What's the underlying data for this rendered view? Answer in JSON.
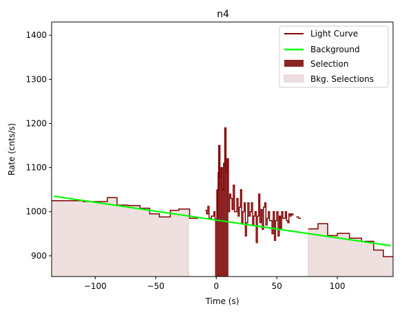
{
  "chart_data": {
    "type": "line",
    "title": "n4",
    "xlabel": "Time (s)",
    "ylabel": "Rate (cnts/s)",
    "xlim": [
      -136,
      146
    ],
    "ylim": [
      853,
      1430
    ],
    "x_ticks": [
      -100,
      -50,
      0,
      50,
      100
    ],
    "x_tick_labels": [
      "−100",
      "−50",
      "0",
      "50",
      "100"
    ],
    "y_ticks": [
      900,
      1000,
      1100,
      1200,
      1300,
      1400
    ],
    "y_tick_labels": [
      "900",
      "1000",
      "1100",
      "1200",
      "1300",
      "1400"
    ],
    "legend_position": "top-right",
    "grid": false,
    "colors": {
      "light_curve": "#800000",
      "background": "#00ff00",
      "selection": "#8b2323",
      "bkg_selection": "#efe0e0"
    },
    "legend": [
      "Light Curve",
      "Background",
      "Selection",
      "Bkg. Selections"
    ],
    "light_curve_segments": [
      [
        [
          -136,
          1025
        ],
        [
          -110,
          1025
        ],
        [
          -110,
          1023
        ],
        [
          -90,
          1023
        ],
        [
          -90,
          1032
        ],
        [
          -82,
          1032
        ],
        [
          -82,
          1015
        ],
        [
          -73,
          1015
        ],
        [
          -73,
          1014
        ],
        [
          -63,
          1014
        ],
        [
          -63,
          1008
        ],
        [
          -55,
          1008
        ],
        [
          -55,
          995
        ],
        [
          -47,
          995
        ],
        [
          -47,
          988
        ],
        [
          -38,
          988
        ],
        [
          -38,
          1003
        ],
        [
          -31,
          1003
        ],
        [
          -31,
          1006
        ],
        [
          -22,
          1006
        ],
        [
          -22,
          985
        ],
        [
          -15,
          985
        ]
      ],
      [
        [
          -9,
          1003
        ],
        [
          -8,
          1003
        ],
        [
          -8,
          995
        ],
        [
          -7,
          995
        ],
        [
          -7,
          1012
        ],
        [
          -6,
          1012
        ],
        [
          -6,
          985
        ],
        [
          -4,
          985
        ],
        [
          -4,
          990
        ],
        [
          -2,
          990
        ],
        [
          -2,
          1000
        ],
        [
          -1,
          1000
        ],
        [
          -1,
          983
        ],
        [
          1,
          983
        ],
        [
          1,
          1050
        ],
        [
          2,
          1050
        ],
        [
          2,
          1150
        ],
        [
          3,
          1150
        ],
        [
          3,
          1080
        ],
        [
          4,
          1080
        ],
        [
          4,
          1100
        ],
        [
          5,
          1100
        ],
        [
          5,
          1050
        ],
        [
          6,
          1050
        ],
        [
          6,
          1110
        ],
        [
          7,
          1110
        ],
        [
          7,
          1190
        ],
        [
          8,
          1190
        ],
        [
          8,
          1090
        ],
        [
          9,
          1090
        ],
        [
          9,
          1120
        ],
        [
          10,
          1120
        ],
        [
          10,
          1000
        ],
        [
          11,
          1000
        ],
        [
          11,
          1040
        ],
        [
          12,
          1040
        ],
        [
          12,
          1030
        ],
        [
          13,
          1030
        ],
        [
          13,
          1005
        ],
        [
          14,
          1005
        ],
        [
          14,
          1060
        ],
        [
          15,
          1060
        ],
        [
          15,
          1000
        ],
        [
          17,
          1000
        ],
        [
          17,
          1030
        ],
        [
          18,
          1030
        ],
        [
          18,
          990
        ],
        [
          19,
          990
        ],
        [
          19,
          1010
        ],
        [
          20,
          1010
        ],
        [
          20,
          1050
        ],
        [
          21,
          1050
        ],
        [
          21,
          975
        ],
        [
          22,
          975
        ],
        [
          22,
          1000
        ],
        [
          23,
          1000
        ],
        [
          23,
          1020
        ],
        [
          24,
          1020
        ],
        [
          24,
          945
        ],
        [
          25,
          945
        ],
        [
          25,
          975
        ],
        [
          26,
          975
        ],
        [
          26,
          1020
        ],
        [
          27,
          1020
        ],
        [
          27,
          990
        ],
        [
          28,
          990
        ],
        [
          28,
          1000
        ],
        [
          29,
          1000
        ],
        [
          29,
          1020
        ],
        [
          30,
          1020
        ],
        [
          30,
          970
        ],
        [
          31,
          970
        ],
        [
          31,
          990
        ],
        [
          32,
          990
        ],
        [
          32,
          1000
        ],
        [
          33,
          1000
        ],
        [
          33,
          930
        ],
        [
          34,
          930
        ],
        [
          34,
          990
        ],
        [
          35,
          990
        ],
        [
          35,
          1040
        ],
        [
          36,
          1040
        ],
        [
          36,
          975
        ],
        [
          37,
          975
        ],
        [
          37,
          1005
        ],
        [
          38,
          1005
        ],
        [
          38,
          960
        ],
        [
          39,
          960
        ],
        [
          39,
          1010
        ],
        [
          40,
          1010
        ],
        [
          40,
          1020
        ],
        [
          41,
          1020
        ],
        [
          41,
          970
        ],
        [
          42,
          970
        ],
        [
          42,
          985
        ],
        [
          43,
          985
        ],
        [
          43,
          1000
        ],
        [
          44,
          1000
        ],
        [
          44,
          980
        ],
        [
          46,
          980
        ],
        [
          46,
          950
        ],
        [
          47,
          950
        ],
        [
          47,
          1000
        ],
        [
          48,
          1000
        ],
        [
          48,
          935
        ],
        [
          49,
          935
        ],
        [
          49,
          980
        ],
        [
          50,
          980
        ],
        [
          50,
          1000
        ],
        [
          51,
          1000
        ],
        [
          51,
          945
        ],
        [
          52,
          945
        ],
        [
          52,
          990
        ],
        [
          53,
          990
        ],
        [
          53,
          960
        ],
        [
          54,
          960
        ],
        [
          54,
          1000
        ],
        [
          55,
          1000
        ],
        [
          55,
          985
        ],
        [
          57,
          985
        ],
        [
          57,
          1000
        ],
        [
          58,
          1000
        ],
        [
          58,
          980
        ],
        [
          59,
          980
        ],
        [
          59,
          975
        ],
        [
          60,
          975
        ],
        [
          60,
          995
        ],
        [
          61,
          995
        ],
        [
          61,
          990
        ],
        [
          62,
          990
        ],
        [
          62,
          995
        ],
        [
          63,
          995
        ],
        [
          63,
          993
        ],
        [
          64,
          993
        ]
      ],
      [
        [
          66,
          988
        ],
        [
          68,
          988
        ],
        [
          68,
          985
        ],
        [
          70,
          985
        ]
      ],
      [
        [
          76,
          961
        ],
        [
          84,
          961
        ],
        [
          84,
          973
        ],
        [
          92,
          973
        ],
        [
          92,
          946
        ],
        [
          100,
          946
        ],
        [
          100,
          951
        ],
        [
          110,
          951
        ],
        [
          110,
          940
        ],
        [
          120,
          940
        ],
        [
          120,
          933
        ],
        [
          130,
          933
        ],
        [
          130,
          913
        ],
        [
          138,
          913
        ],
        [
          138,
          898
        ],
        [
          146,
          898
        ]
      ]
    ],
    "background_line": [
      [
        -134,
        1035
      ],
      [
        144,
        923
      ]
    ],
    "selection": [
      [
        -1,
        983
      ],
      [
        0,
        983
      ],
      [
        0,
        1050
      ],
      [
        1,
        1050
      ],
      [
        1,
        1090
      ],
      [
        2,
        1090
      ],
      [
        2,
        1150
      ],
      [
        3,
        1150
      ],
      [
        3,
        1080
      ],
      [
        4,
        1080
      ],
      [
        4,
        1100
      ],
      [
        5,
        1100
      ],
      [
        5,
        1050
      ],
      [
        6,
        1050
      ],
      [
        6,
        1110
      ],
      [
        7,
        1110
      ],
      [
        7,
        1190
      ],
      [
        8,
        1190
      ],
      [
        8,
        1090
      ],
      [
        9,
        1090
      ],
      [
        9,
        1120
      ],
      [
        10,
        1120
      ]
    ],
    "bkg_selections": [
      [
        [
          -136,
          1025
        ],
        [
          -110,
          1025
        ],
        [
          -110,
          1023
        ],
        [
          -90,
          1023
        ],
        [
          -90,
          1032
        ],
        [
          -82,
          1032
        ],
        [
          -82,
          1015
        ],
        [
          -73,
          1015
        ],
        [
          -73,
          1014
        ],
        [
          -63,
          1014
        ],
        [
          -63,
          1008
        ],
        [
          -55,
          1008
        ],
        [
          -55,
          995
        ],
        [
          -47,
          995
        ],
        [
          -47,
          988
        ],
        [
          -38,
          988
        ],
        [
          -38,
          1003
        ],
        [
          -31,
          1003
        ],
        [
          -31,
          1006
        ],
        [
          -23,
          1006
        ]
      ],
      [
        [
          76,
          961
        ],
        [
          84,
          961
        ],
        [
          84,
          973
        ],
        [
          92,
          973
        ],
        [
          92,
          946
        ],
        [
          100,
          946
        ],
        [
          100,
          951
        ],
        [
          110,
          951
        ],
        [
          110,
          940
        ],
        [
          120,
          940
        ],
        [
          120,
          933
        ],
        [
          130,
          933
        ],
        [
          130,
          913
        ],
        [
          138,
          913
        ],
        [
          138,
          898
        ],
        [
          146,
          898
        ]
      ]
    ]
  }
}
